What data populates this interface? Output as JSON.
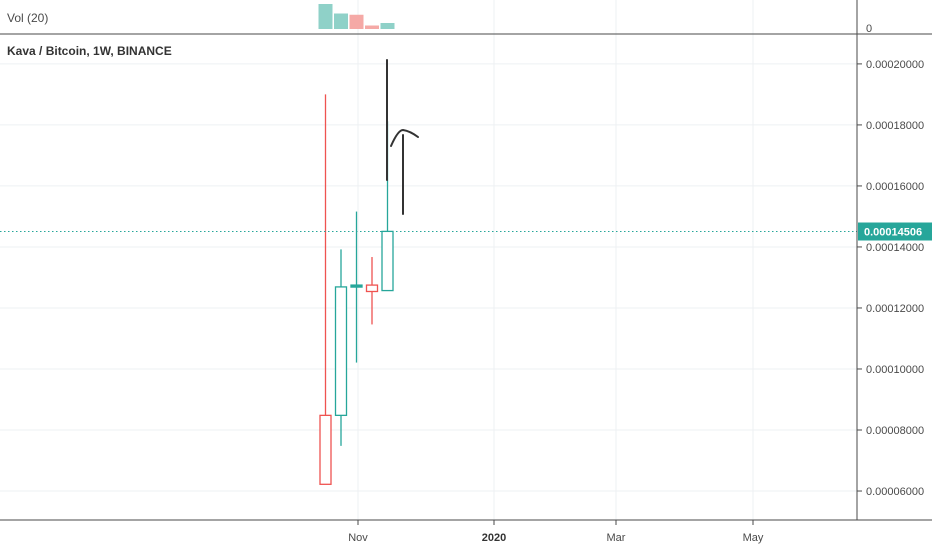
{
  "header": {
    "volume_label": "Vol (20)",
    "volume_axis_zero": "0",
    "symbol_title": "Kava / Bitcoin, 1W, BINANCE"
  },
  "chart_data": {
    "type": "candlestick",
    "title": "Kava / Bitcoin, 1W, BINANCE",
    "ylim": [
      5.05e-05,
      0.0002098
    ],
    "y_ticks": [
      "0.00020000",
      "0.00018000",
      "0.00016000",
      "0.00014000",
      "0.00012000",
      "0.00010000",
      "0.00008000",
      "0.00006000"
    ],
    "y_tick_values": [
      0.0002,
      0.00018,
      0.00016,
      0.00014,
      0.00012,
      0.0001,
      8e-05,
      6e-05
    ],
    "x_labels": [
      {
        "label": "Nov",
        "bold": false
      },
      {
        "label": "2020",
        "bold": true
      },
      {
        "label": "Mar",
        "bold": false
      },
      {
        "label": "May",
        "bold": false
      }
    ],
    "last_price": "0.00014506",
    "last_price_value": 0.00014506,
    "grid": true,
    "candles": [
      {
        "open": 8.48e-05,
        "high": 0.00019,
        "low": 6.22e-05,
        "close": 6.22e-05,
        "direction": "down"
      },
      {
        "open": 8.48e-05,
        "high": 0.0001392,
        "low": 7.48e-05,
        "close": 0.0001269,
        "direction": "up"
      },
      {
        "open": 0.0001269,
        "high": 0.0001516,
        "low": 0.0001021,
        "close": 0.0001275,
        "direction": "up"
      },
      {
        "open": 0.0001275,
        "high": 0.0001367,
        "low": 0.0001146,
        "close": 0.0001254,
        "direction": "down"
      },
      {
        "open": 0.0001257,
        "high": 0.0001812,
        "low": 0.0001257,
        "close": 0.0001451,
        "direction": "up"
      }
    ],
    "volume": [
      {
        "value": 1.0,
        "direction": "up"
      },
      {
        "value": 0.62,
        "direction": "up"
      },
      {
        "value": 0.57,
        "direction": "down"
      },
      {
        "value": 0.14,
        "direction": "down"
      },
      {
        "value": 0.24,
        "direction": "up"
      }
    ],
    "colors": {
      "up": "#26a69a",
      "down": "#ef5350",
      "volume_up": "#8fd1c8",
      "volume_down": "#f5a9a6",
      "last_price_line": "#26a69a",
      "grid": "#eef0f3",
      "axis_line": "#4a4a4a",
      "drawing": "#333333"
    }
  }
}
